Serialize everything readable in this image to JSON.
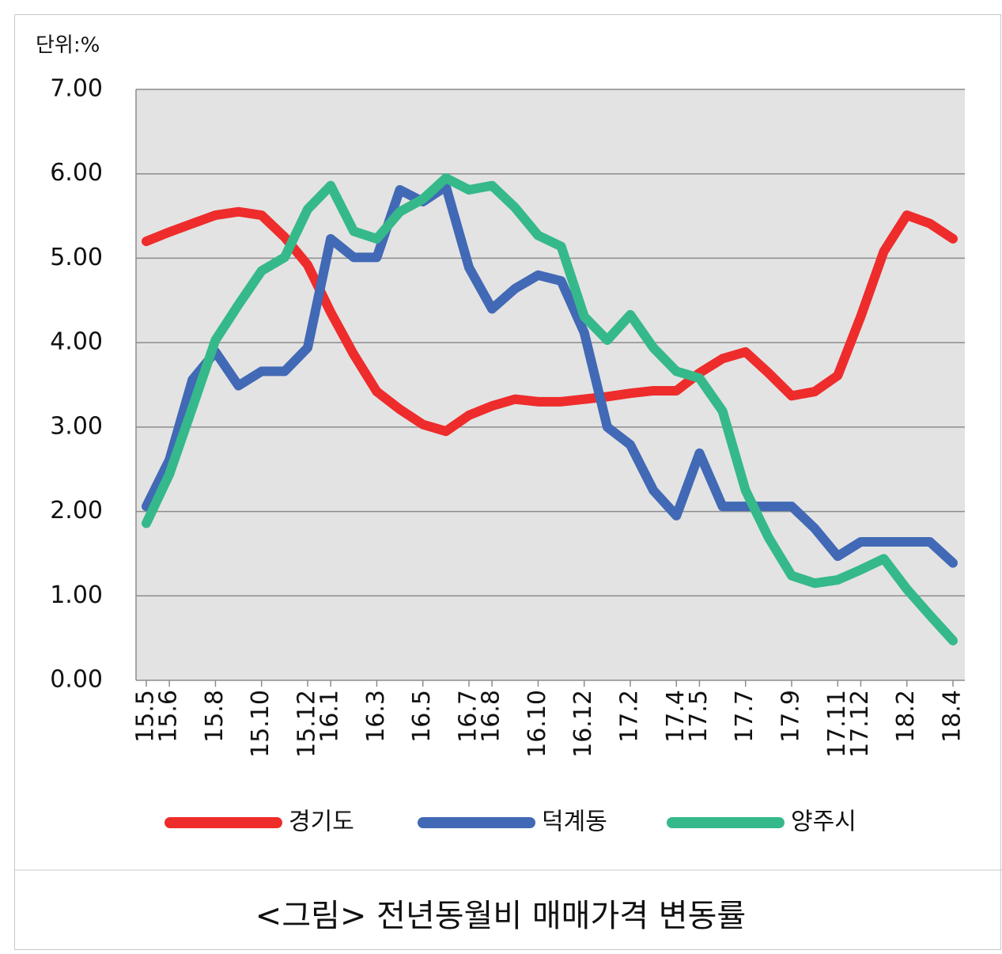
{
  "chart_data": {
    "type": "line",
    "title": "<그림> 전년동월비 매매가격 변동률",
    "unit_label": "단위:%",
    "categories": [
      "15.5",
      "15.6",
      null,
      "15.8",
      null,
      "15.10",
      null,
      "15.12",
      "16.1",
      null,
      "16.3",
      null,
      "16.5",
      null,
      "16.7",
      "16.8",
      null,
      "16.10",
      null,
      "16.12",
      null,
      "17.2",
      null,
      "17.4",
      "17.5",
      null,
      "17.7",
      null,
      "17.9",
      null,
      "17.11",
      "17.12",
      null,
      "18.2",
      null,
      "18.4"
    ],
    "series": [
      {
        "name": "경기도",
        "color": "#ee2c2c",
        "values": [
          5.2,
          5.31,
          5.41,
          5.51,
          5.55,
          5.51,
          5.25,
          4.92,
          4.36,
          3.86,
          3.42,
          3.21,
          3.03,
          2.95,
          3.14,
          3.25,
          3.33,
          3.3,
          3.3,
          3.33,
          3.36,
          3.4,
          3.43,
          3.43,
          3.64,
          3.81,
          3.89,
          3.64,
          3.37,
          3.42,
          3.61,
          4.31,
          5.08,
          5.51,
          5.41,
          5.23
        ]
      },
      {
        "name": "덕계동",
        "color": "#4169b5",
        "values": [
          2.06,
          2.61,
          3.56,
          3.89,
          3.49,
          3.66,
          3.66,
          3.94,
          5.23,
          5.01,
          5.01,
          5.81,
          5.67,
          5.85,
          4.89,
          4.4,
          4.64,
          4.8,
          4.73,
          4.12,
          3.0,
          2.79,
          2.25,
          1.95,
          2.69,
          2.06,
          2.06,
          2.06,
          2.06,
          1.8,
          1.47,
          1.64,
          1.64,
          1.64,
          1.64,
          1.39
        ]
      },
      {
        "name": "양주시",
        "color": "#35b98a",
        "values": [
          1.86,
          2.44,
          3.23,
          4.03,
          4.45,
          4.85,
          5.01,
          5.58,
          5.86,
          5.32,
          5.23,
          5.55,
          5.7,
          5.95,
          5.81,
          5.86,
          5.6,
          5.27,
          5.14,
          4.31,
          4.03,
          4.33,
          3.94,
          3.66,
          3.58,
          3.19,
          2.25,
          1.69,
          1.24,
          1.15,
          1.19,
          1.31,
          1.44,
          1.08,
          0.77,
          0.47
        ]
      }
    ],
    "ylim": [
      0,
      7
    ],
    "yticks": [
      {
        "value": 0,
        "label": "0.00"
      },
      {
        "value": 1,
        "label": "1.00"
      },
      {
        "value": 2,
        "label": "2.00"
      },
      {
        "value": 3,
        "label": "3.00"
      },
      {
        "value": 4,
        "label": "4.00"
      },
      {
        "value": 5,
        "label": "5.00"
      },
      {
        "value": 6,
        "label": "6.00"
      },
      {
        "value": 7,
        "label": "7.00"
      }
    ],
    "grid": true
  }
}
